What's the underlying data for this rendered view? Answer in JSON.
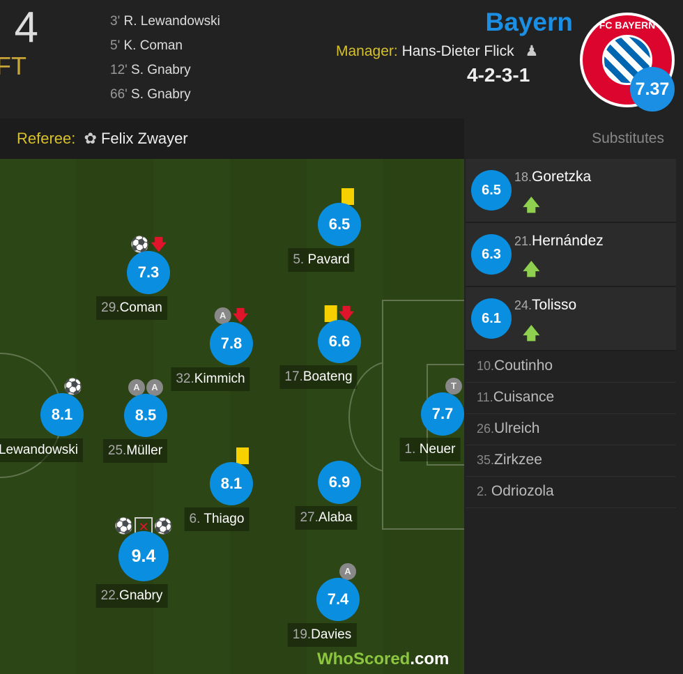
{
  "header": {
    "score": ": 4",
    "status": "FT",
    "goals": [
      {
        "minute": "3'",
        "player": "R. Lewandowski"
      },
      {
        "minute": "5'",
        "player": "K. Coman"
      },
      {
        "minute": "12'",
        "player": "S. Gnabry"
      },
      {
        "minute": "66'",
        "player": "S. Gnabry"
      }
    ],
    "team": "Bayern",
    "manager_label": "Manager:",
    "manager": "Hans-Dieter Flick",
    "formation": "4-2-3-1",
    "team_rating": "7.37",
    "logo_text": "FC BAYERN MÜNCHEN"
  },
  "referee": {
    "label": "Referee:",
    "name": "Felix Zwayer"
  },
  "substitutes_title": "Substitutes",
  "players": [
    {
      "num": "5.",
      "name": "Pavard",
      "rating": "6.5"
    },
    {
      "num": "29.",
      "name": "Coman",
      "rating": "7.3"
    },
    {
      "num": "32.",
      "name": "Kimmich",
      "rating": "7.8"
    },
    {
      "num": "17.",
      "name": "Boateng",
      "rating": "6.6"
    },
    {
      "num": "",
      "name": "Lewandowski",
      "rating": "8.1"
    },
    {
      "num": "25.",
      "name": "Müller",
      "rating": "8.5"
    },
    {
      "num": "1.",
      "name": "Neuer",
      "rating": "7.7"
    },
    {
      "num": "6.",
      "name": "Thiago",
      "rating": "8.1"
    },
    {
      "num": "27.",
      "name": "Alaba",
      "rating": "6.9"
    },
    {
      "num": "22.",
      "name": "Gnabry",
      "rating": "9.4"
    },
    {
      "num": "19.",
      "name": "Davies",
      "rating": "7.4"
    }
  ],
  "icon_text": {
    "assist": "A",
    "keeper": "T"
  },
  "subs_used": [
    {
      "num": "18.",
      "name": "Goretzka",
      "rating": "6.5"
    },
    {
      "num": "21.",
      "name": "Hernández",
      "rating": "6.3"
    },
    {
      "num": "24.",
      "name": "Tolisso",
      "rating": "6.1"
    }
  ],
  "bench": [
    {
      "num": "10.",
      "name": "Coutinho"
    },
    {
      "num": "11.",
      "name": "Cuisance"
    },
    {
      "num": "26.",
      "name": "Ulreich"
    },
    {
      "num": "35.",
      "name": "Zirkzee"
    },
    {
      "num": "2.",
      "name": "Odriozola"
    }
  ],
  "watermark": {
    "a": "WhoScored",
    "b": ".com"
  },
  "colors": {
    "rating": "#0a8ee0",
    "team": "#1a8fe3",
    "gold": "#d7c12a",
    "pitch": "#2c4615"
  }
}
